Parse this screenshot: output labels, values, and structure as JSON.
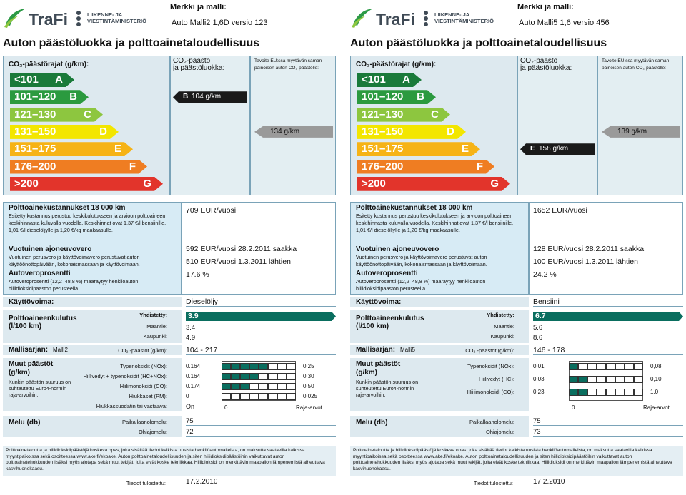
{
  "labels": [
    {
      "brand": "TraFi",
      "ministry_line1": "LIIKENNE- JA",
      "ministry_line2": "VIESTINTÄMINISTERIÖ",
      "make_model_title": "Merkki ja malli:",
      "make_model": "Auto Malli2 1,6D versio 123",
      "main_title": "Auton päästöluokka ja polttoainetaloudellisuus",
      "co2_limits_title": "CO₂-päästörajat (g/km):",
      "co2_class_title_1": "CO₂-päästö",
      "co2_class_title_2": "ja päästöluokka:",
      "eu_target_1": "Tavoite EU:ssa myytävän saman",
      "eu_target_2": "painoisen auton CO₂-päästölle:",
      "bands": [
        {
          "range": "<101",
          "letter": "A",
          "color": "#1a7a3a"
        },
        {
          "range": "101–120",
          "letter": "B",
          "color": "#2b9a3f"
        },
        {
          "range": "121–130",
          "letter": "C",
          "color": "#8dc63f"
        },
        {
          "range": "131–150",
          "letter": "D",
          "color": "#f3e600"
        },
        {
          "range": "151–175",
          "letter": "E",
          "color": "#f6b316"
        },
        {
          "range": "176–200",
          "letter": "F",
          "color": "#ef7d22"
        },
        {
          "range": ">200",
          "letter": "G",
          "color": "#e2342b"
        }
      ],
      "vehicle_class": "B",
      "vehicle_co2": "104 g/km",
      "vehicle_band_index": 1,
      "eu_target_value": "134 g/km",
      "eu_band_index": 3,
      "cost_title": "Polttoainekustannukset 18 000 km",
      "cost_text": "Esitetty kustannus perustuu keskikulutukseen ja arvioon polttoaineen keskihinnasta kuluvalla vuodella. Keskihinnat ovat 1,37 €/l bensiinille, 1,01 €/l dieselöljylle ja 1,20 €/kg maakaasulle.",
      "cost_value": "709 EUR/vuosi",
      "tax_title": "Vuotuinen ajoneuvovero",
      "tax_text": "Vuotuinen perusvero ja käyttövoimavero perustuvat auton käyttöönottopäivään, kokonaismassaan ja käyttövoimaan.",
      "tax_value_1": "592 EUR/vuosi 28.2.2011 saakka",
      "tax_value_2": "510 EUR/vuosi 1.3.2011 lähtien",
      "cartax_title": "Autoveroprosentti",
      "cartax_text": "Autoveroprosentti (12,2–48,8 %) määräytyy henkilöauton hiilidioksidipäästön perusteella.",
      "cartax_value": "17.6 %",
      "fuel_type_label": "Käyttövoima:",
      "fuel_type": "Dieselöljy",
      "consumption_title": "Polttoaineenkulutus (l/100 km)",
      "combined_label": "Yhdistetty:",
      "combined": "3.9",
      "highway_label": "Maantie:",
      "highway": "3.4",
      "city_label": "Kaupunki:",
      "city": "4.9",
      "series_label": "Mallisarjan:",
      "series_name": "Malli2",
      "series_co2_label": "CO₂ -päästöt (g/km):",
      "series_co2": "104 - 217",
      "other_emissions_title": "Muut päästöt (g/km)",
      "other_emissions_text": "Kunkin päästön suuruus on suhteutettu Euro4-normin raja-arvoihin.",
      "emissions": [
        {
          "label": "Typenoksidit (NOx):",
          "value": "0.164",
          "limit": "0,25",
          "ratio": 0.66
        },
        {
          "label": "Hiilivedyt + typenoksidit (HC+NOx):",
          "value": "0.164",
          "limit": "0,30",
          "ratio": 0.55
        },
        {
          "label": "Hiilimonoksidi (CO):",
          "value": "0.174",
          "limit": "0,50",
          "ratio": 0.35
        },
        {
          "label": "Hiukkaset (PM):",
          "value": "0",
          "limit": "0,025",
          "ratio": 0.0
        }
      ],
      "particle_filter_label": "Hiukkassuodatin tai vastaava:",
      "particle_filter": "On",
      "scale_zero": "0",
      "scale_limit": "Raja-arvot",
      "noise_title": "Melu (db)",
      "noise_pass_label": "Paikallaanolomelu:",
      "noise_pass": "75",
      "noise_drive_label": "Ohiajomelu:",
      "noise_drive": "72",
      "footer_text": "Polttoainetaloutta ja hiilidioksidipäästöjä koskeva opas, joka sisältää tiedot kaikista uusista henkilöautomalleista, on maksutta saatavilla kaikissa myyntipaikoissa sekä osoitteessa www.ake.fi/ekoake. Auton polttoainetaloudellisuuden ja siten hiilidioksidipäästöihin vaikuttavat auton polttoainetehokkuuden lisäksi myös ajotapa sekä muut tekijät, joita eivät koske tekniikkaa. Hiilidioksidi on merkittävin maapallon lämpenemistä aiheuttava kasvihuonekaasu.",
      "print_date_label": "Tiedot tulostettu:",
      "print_date": "17.2.2010"
    },
    {
      "brand": "TraFi",
      "ministry_line1": "LIIKENNE- JA",
      "ministry_line2": "VIESTINTÄMINISTERIÖ",
      "make_model_title": "Merkki ja malli:",
      "make_model": "Auto Malli5 1,6 versio 456",
      "main_title": "Auton päästöluokka ja polttoainetaloudellisuus",
      "co2_limits_title": "CO₂-päästörajat (g/km):",
      "co2_class_title_1": "CO₂-päästö",
      "co2_class_title_2": "ja päästöluokka:",
      "eu_target_1": "Tavoite EU:ssa myytävän saman",
      "eu_target_2": "painoisen auton CO₂-päästölle:",
      "bands": [
        {
          "range": "<101",
          "letter": "A",
          "color": "#1a7a3a"
        },
        {
          "range": "101–120",
          "letter": "B",
          "color": "#2b9a3f"
        },
        {
          "range": "121–130",
          "letter": "C",
          "color": "#8dc63f"
        },
        {
          "range": "131–150",
          "letter": "D",
          "color": "#f3e600"
        },
        {
          "range": "151–175",
          "letter": "E",
          "color": "#f6b316"
        },
        {
          "range": "176–200",
          "letter": "F",
          "color": "#ef7d22"
        },
        {
          "range": ">200",
          "letter": "G",
          "color": "#e2342b"
        }
      ],
      "vehicle_class": "E",
      "vehicle_co2": "158 g/km",
      "vehicle_band_index": 4,
      "eu_target_value": "139 g/km",
      "eu_band_index": 3,
      "cost_title": "Polttoainekustannukset 18 000 km",
      "cost_text": "Esitetty kustannus perustuu keskikulutukseen ja arvioon polttoaineen keskihinnasta kuluvalla vuodella. Keskihinnat ovat 1,37 €/l bensiinille, 1,01 €/l dieselöljylle ja 1,20 €/kg maakaasulle.",
      "cost_value": "1652 EUR/vuosi",
      "tax_title": "Vuotuinen ajoneuvovero",
      "tax_text": "Vuotuinen perusvero ja käyttövoimavero perustuvat auton käyttöönottopäivään, kokonaismassaan ja käyttövoimaan.",
      "tax_value_1": "128 EUR/vuosi 28.2.2011 saakka",
      "tax_value_2": "100 EUR/vuosi 1.3.2011 lähtien",
      "cartax_title": "Autoveroprosentti",
      "cartax_text": "Autoveroprosentti (12,2–48,8 %) määräytyy henkilöauton hiilidioksidipäästön perusteella.",
      "cartax_value": "24.2 %",
      "fuel_type_label": "Käyttövoima:",
      "fuel_type": "Bensiini",
      "consumption_title": "Polttoaineenkulutus (l/100 km)",
      "combined_label": "Yhdistetty:",
      "combined": "6.7",
      "highway_label": "Maantie:",
      "highway": "5.6",
      "city_label": "Kaupunki:",
      "city": "8.6",
      "series_label": "Mallisarjan:",
      "series_name": "Malli5",
      "series_co2_label": "CO₂ -päästöt (g/km):",
      "series_co2": "146 - 178",
      "other_emissions_title": "Muut päästöt (g/km)",
      "other_emissions_text": "Kunkin päästön suuruus on suhteutettu Euro4-normin raja-arvoihin.",
      "emissions": [
        {
          "label": "Typenoksidit (NOx):",
          "value": "0.01",
          "limit": "0,08",
          "ratio": 0.13
        },
        {
          "label": "Hiilivedyt (HC):",
          "value": "0.03",
          "limit": "0,10",
          "ratio": 0.3
        },
        {
          "label": "Hiilimonoksidi (CO):",
          "value": "0.23",
          "limit": "1,0",
          "ratio": 0.23
        }
      ],
      "particle_filter_label": "",
      "particle_filter": "",
      "scale_zero": "0",
      "scale_limit": "Raja-arvot",
      "noise_title": "Melu (db)",
      "noise_pass_label": "Paikallaanolomelu:",
      "noise_pass": "75",
      "noise_drive_label": "Ohiajomelu:",
      "noise_drive": "73",
      "footer_text": "Polttoainetaloutta ja hiilidioksidipäästöjä koskeva opas, joka sisältää tiedot kaikista uusista henkilöautomalleista, on maksutta saatavilla kaikissa myyntipaikoissa sekä osoitteessa www.ake.fi/ekoake. Auton polttoainetaloudellisuuden ja siten hiilidioksidipäästöihin vaikuttavat auton polttoainetehokkuuden lisäksi myös ajotapa sekä muut tekijät, joita eivät koske tekniikkaa. Hiilidioksidi on merkittävin maapallon lämpenemistä aiheuttava kasvihuonekaasu.",
      "print_date_label": "Tiedot tulostettu:",
      "print_date": "17.2.2010"
    }
  ]
}
